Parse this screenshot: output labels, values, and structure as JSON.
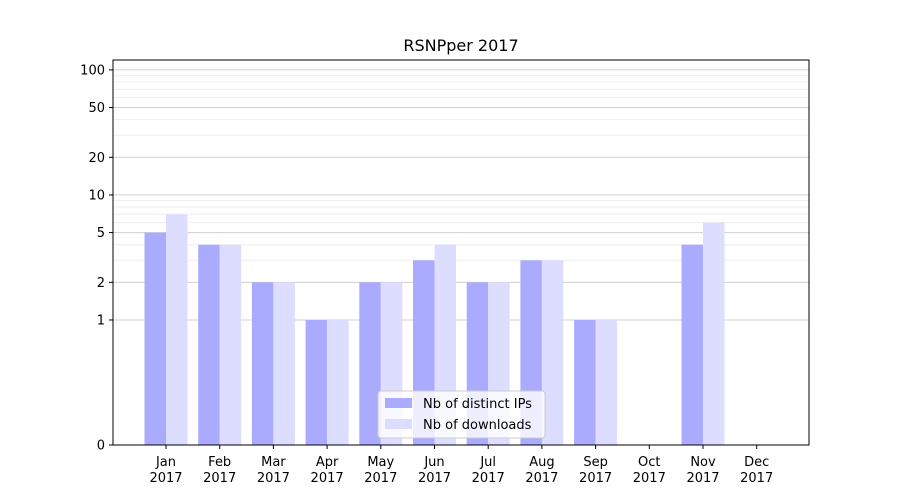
{
  "chart_data": {
    "type": "bar",
    "title": "RSNPper 2017",
    "xlabel": "",
    "ylabel": "",
    "yscale": "symlog",
    "ylim": [
      0,
      120
    ],
    "yticks": [
      0,
      1,
      2,
      5,
      10,
      20,
      50,
      100
    ],
    "ytick_labels": [
      "0",
      "1",
      "2",
      "5",
      "10",
      "20",
      "50",
      "100"
    ],
    "categories": [
      "Jan\n2017",
      "Feb\n2017",
      "Mar\n2017",
      "Apr\n2017",
      "May\n2017",
      "Jun\n2017",
      "Jul\n2017",
      "Aug\n2017",
      "Sep\n2017",
      "Oct\n2017",
      "Nov\n2017",
      "Dec\n2017"
    ],
    "category_lines": [
      [
        "Jan",
        "2017"
      ],
      [
        "Feb",
        "2017"
      ],
      [
        "Mar",
        "2017"
      ],
      [
        "Apr",
        "2017"
      ],
      [
        "May",
        "2017"
      ],
      [
        "Jun",
        "2017"
      ],
      [
        "Jul",
        "2017"
      ],
      [
        "Aug",
        "2017"
      ],
      [
        "Sep",
        "2017"
      ],
      [
        "Oct",
        "2017"
      ],
      [
        "Nov",
        "2017"
      ],
      [
        "Dec",
        "2017"
      ]
    ],
    "series": [
      {
        "name": "Nb of distinct IPs",
        "color": "#aaaaff",
        "values": [
          5,
          4,
          2,
          1,
          2,
          3,
          2,
          3,
          1,
          0,
          4,
          0
        ]
      },
      {
        "name": "Nb of downloads",
        "color": "#ddddff",
        "values": [
          7,
          4,
          2,
          1,
          2,
          4,
          2,
          3,
          1,
          0,
          6,
          0
        ]
      }
    ],
    "legend": "bottom-center",
    "grid": true
  }
}
